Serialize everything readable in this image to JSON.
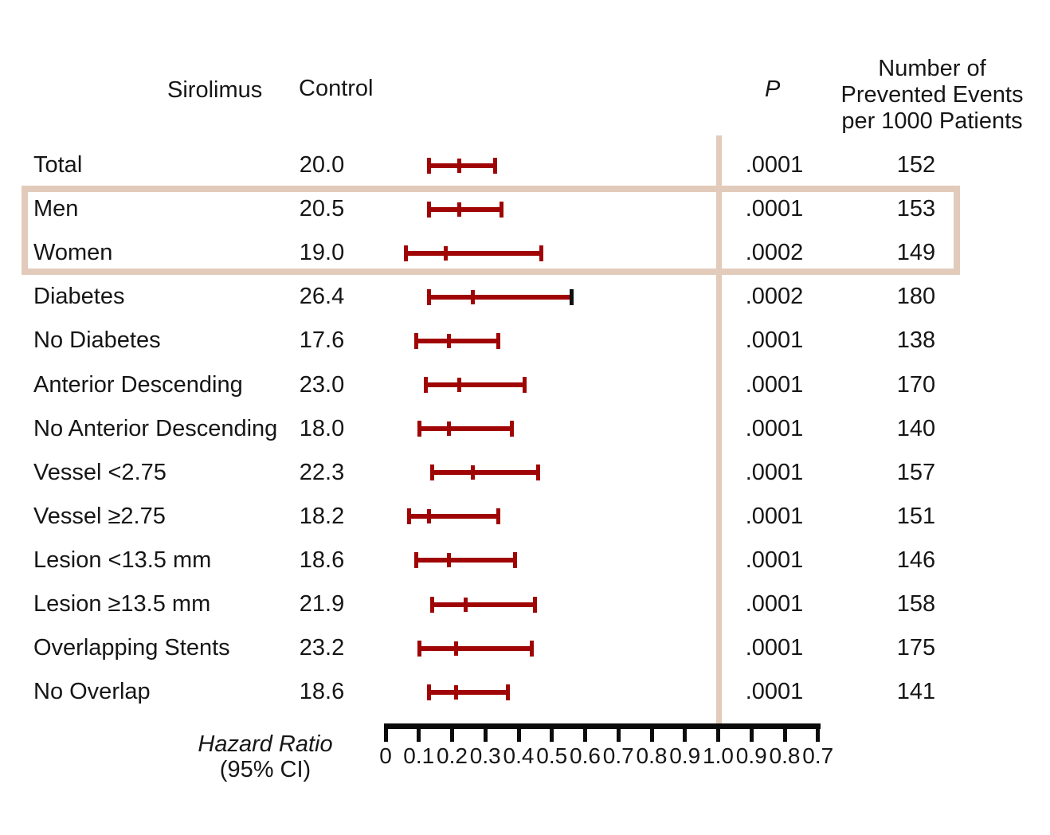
{
  "columns": {
    "sirolimus": "Sirolimus",
    "control": "Control",
    "p": "P",
    "events_line1": "Number of",
    "events_line2": "Prevented Events",
    "events_line3": "per 1000 Patients"
  },
  "footer": {
    "axis_label_line1": "Hazard Ratio",
    "axis_label_line2": "(95% CI)"
  },
  "colors": {
    "bar_red": "#A00505",
    "highlight_tan": "#E2CBBB",
    "axis_black": "#0b0b0b",
    "diabetes_right_cap": "#111111"
  },
  "chart_data": {
    "type": "forest",
    "title": "",
    "xlabel": "Hazard Ratio (95% CI)",
    "axis": {
      "ticks": [
        "0",
        "0.1",
        "0.2",
        "0.3",
        "0.4",
        "0.5",
        "0.6",
        "0.7",
        "0.8",
        "0.9",
        "1.0",
        "0.9",
        "0.8",
        "0.7"
      ],
      "reference_value": "1.0",
      "grid": false,
      "note": "linear axis 0 to 1.0 then mirrored back down to 0.7"
    },
    "rows": [
      {
        "label": "Total",
        "control": "20.0",
        "hr": 0.22,
        "lo": 0.13,
        "hi": 0.33,
        "p": ".0001",
        "events": "152",
        "highlighted": false
      },
      {
        "label": "Men",
        "control": "20.5",
        "hr": 0.22,
        "lo": 0.13,
        "hi": 0.35,
        "p": ".0001",
        "events": "153",
        "highlighted": true
      },
      {
        "label": "Women",
        "control": "19.0",
        "hr": 0.18,
        "lo": 0.06,
        "hi": 0.47,
        "p": ".0002",
        "events": "149",
        "highlighted": true
      },
      {
        "label": "Diabetes",
        "control": "26.4",
        "hr": 0.26,
        "lo": 0.13,
        "hi": 0.56,
        "p": ".0002",
        "events": "180",
        "right_cap_black": true
      },
      {
        "label": "No Diabetes",
        "control": "17.6",
        "hr": 0.19,
        "lo": 0.09,
        "hi": 0.34,
        "p": ".0001",
        "events": "138"
      },
      {
        "label": "Anterior Descending",
        "control": "23.0",
        "hr": 0.22,
        "lo": 0.12,
        "hi": 0.42,
        "p": ".0001",
        "events": "170"
      },
      {
        "label": "No Anterior Descending",
        "control": "18.0",
        "hr": 0.19,
        "lo": 0.1,
        "hi": 0.38,
        "p": ".0001",
        "events": "140"
      },
      {
        "label": "Vessel <2.75",
        "control": "22.3",
        "hr": 0.26,
        "lo": 0.14,
        "hi": 0.46,
        "p": ".0001",
        "events": "157"
      },
      {
        "label": "Vessel ≥2.75",
        "control": "18.2",
        "hr": 0.13,
        "lo": 0.07,
        "hi": 0.34,
        "p": ".0001",
        "events": "151"
      },
      {
        "label": "Lesion <13.5 mm",
        "control": "18.6",
        "hr": 0.19,
        "lo": 0.09,
        "hi": 0.39,
        "p": ".0001",
        "events": "146"
      },
      {
        "label": "Lesion ≥13.5 mm",
        "control": "21.9",
        "hr": 0.24,
        "lo": 0.14,
        "hi": 0.45,
        "p": ".0001",
        "events": "158"
      },
      {
        "label": "Overlapping Stents",
        "control": "23.2",
        "hr": 0.21,
        "lo": 0.1,
        "hi": 0.44,
        "p": ".0001",
        "events": "175"
      },
      {
        "label": "No Overlap",
        "control": "18.6",
        "hr": 0.21,
        "lo": 0.13,
        "hi": 0.37,
        "p": ".0001",
        "events": "141"
      }
    ]
  }
}
